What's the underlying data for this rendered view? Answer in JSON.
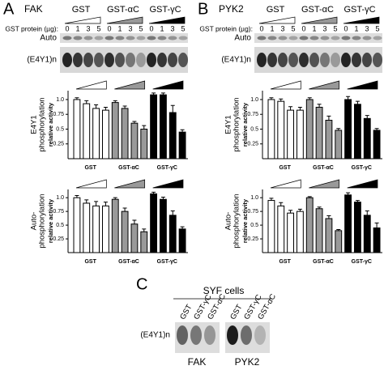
{
  "panels": [
    {
      "letter": "A",
      "kinase": "FAK",
      "groups": [
        "GST",
        "GST-αC",
        "GST-γC"
      ],
      "dose_label": "GST protein (µg):",
      "doses": [
        0,
        1,
        3,
        5
      ],
      "rows": [
        "Auto",
        "(E4Y1)n"
      ]
    },
    {
      "letter": "B",
      "kinase": "PYK2",
      "groups": [
        "GST",
        "GST-αC",
        "GST-γC"
      ],
      "dose_label": "GST protein (µg):",
      "doses": [
        0,
        1,
        3,
        5
      ],
      "rows": [
        "Auto",
        "(E4Y1)n"
      ]
    }
  ],
  "panel_c": {
    "letter": "C",
    "title": "SYF cells",
    "lanes": [
      "GST",
      "GST-γC",
      "GST-αC"
    ],
    "row": "(E4Y1)n",
    "blots": [
      "FAK",
      "PYK2"
    ]
  },
  "chart_data": [
    {
      "type": "bar",
      "ylabel": [
        "E4Y1",
        "phosphorylation"
      ],
      "ylabel_sub": "relative activity",
      "ylim": [
        0,
        1.15
      ],
      "yticks": [
        0.25,
        0.5,
        0.75,
        {
          "value": 1,
          "label": "1.0"
        }
      ],
      "series": [
        {
          "name": "GST",
          "color": "#ffffff",
          "values": [
            1.0,
            0.93,
            0.85,
            0.82
          ],
          "errors": [
            0.03,
            0.05,
            0.06,
            0.05
          ]
        },
        {
          "name": "GST-αC",
          "color": "#999999",
          "values": [
            0.95,
            0.85,
            0.6,
            0.5
          ],
          "errors": [
            0.03,
            0.04,
            0.03,
            0.06
          ]
        },
        {
          "name": "GST-γC",
          "color": "#000000",
          "values": [
            1.08,
            1.08,
            0.78,
            0.45
          ],
          "errors": [
            0.03,
            0.03,
            0.12,
            0.04
          ]
        }
      ]
    },
    {
      "type": "bar",
      "ylabel": [
        "Auto-",
        "phosphorylation"
      ],
      "ylabel_sub": "relative activity",
      "ylim": [
        0,
        1.15
      ],
      "yticks": [
        0.25,
        0.5,
        0.75,
        {
          "value": 1,
          "label": "1.0"
        }
      ],
      "series": [
        {
          "name": "GST",
          "color": "#ffffff",
          "values": [
            1.0,
            0.9,
            0.85,
            0.85
          ],
          "errors": [
            0.04,
            0.06,
            0.08,
            0.07
          ]
        },
        {
          "name": "GST-αC",
          "color": "#999999",
          "values": [
            0.97,
            0.75,
            0.52,
            0.38
          ],
          "errors": [
            0.03,
            0.06,
            0.07,
            0.05
          ]
        },
        {
          "name": "GST-γC",
          "color": "#000000",
          "values": [
            1.07,
            0.97,
            0.68,
            0.43
          ],
          "errors": [
            0.03,
            0.04,
            0.08,
            0.04
          ]
        }
      ]
    },
    {
      "type": "bar",
      "ylabel": [
        "E4Y1",
        "phosphorylation"
      ],
      "ylabel_sub": "relative activity",
      "ylim": [
        0,
        1.15
      ],
      "yticks": [
        0.25,
        0.5,
        0.75,
        {
          "value": 1,
          "label": "1.0"
        }
      ],
      "series": [
        {
          "name": "GST",
          "color": "#ffffff",
          "values": [
            1.0,
            0.97,
            0.82,
            0.82
          ],
          "errors": [
            0.03,
            0.04,
            0.06,
            0.05
          ]
        },
        {
          "name": "GST-αC",
          "color": "#999999",
          "values": [
            1.0,
            0.87,
            0.65,
            0.48
          ],
          "errors": [
            0.03,
            0.05,
            0.07,
            0.03
          ]
        },
        {
          "name": "GST-γC",
          "color": "#000000",
          "values": [
            1.0,
            0.92,
            0.68,
            0.48
          ],
          "errors": [
            0.05,
            0.05,
            0.05,
            0.03
          ]
        }
      ]
    },
    {
      "type": "bar",
      "ylabel": [
        "Auto-",
        "phosphorylation"
      ],
      "ylabel_sub": "relative activity",
      "ylim": [
        0,
        1.15
      ],
      "yticks": [
        0.25,
        0.5,
        0.75,
        {
          "value": 1,
          "label": "1.0"
        }
      ],
      "series": [
        {
          "name": "GST",
          "color": "#ffffff",
          "values": [
            0.95,
            0.85,
            0.72,
            0.75
          ],
          "errors": [
            0.04,
            0.06,
            0.05,
            0.04
          ]
        },
        {
          "name": "GST-αC",
          "color": "#999999",
          "values": [
            1.0,
            0.8,
            0.62,
            0.4
          ],
          "errors": [
            0.02,
            0.03,
            0.05,
            0.02
          ]
        },
        {
          "name": "GST-γC",
          "color": "#000000",
          "values": [
            1.05,
            0.92,
            0.68,
            0.45
          ],
          "errors": [
            0.04,
            0.03,
            0.08,
            0.09
          ]
        }
      ]
    }
  ]
}
